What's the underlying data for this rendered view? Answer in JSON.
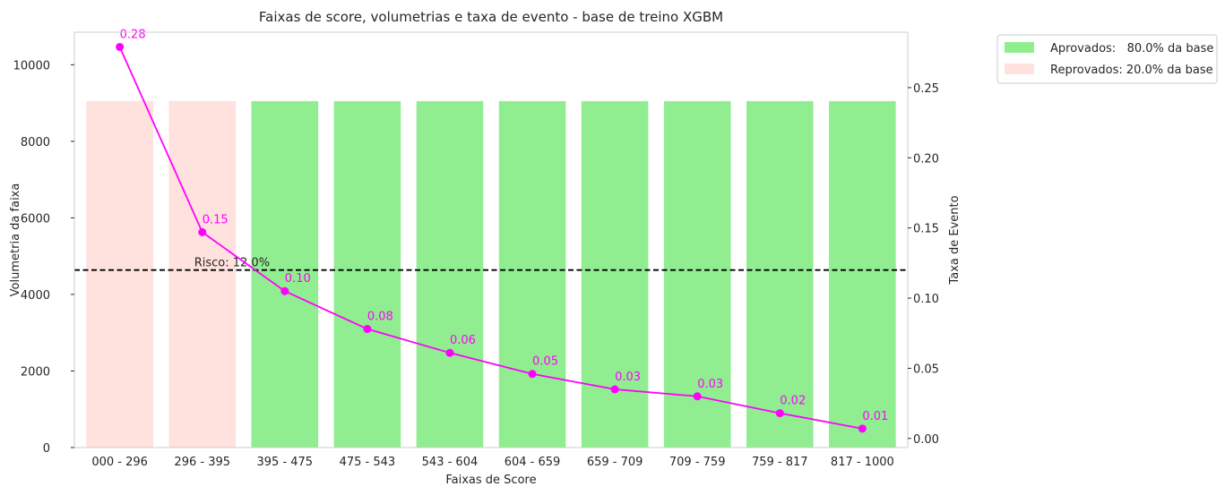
{
  "chart_data": {
    "type": "bar",
    "title": "Faixas de score, volumetrias e taxa de evento - base de treino XGBM",
    "xlabel": "Faixas de Score",
    "ylabel": "Volumetria da faixa",
    "y2label": "Taxa de Evento",
    "categories": [
      "000 - 296",
      "296 - 395",
      "395 - 475",
      "475 - 543",
      "543 - 604",
      "604 - 659",
      "659 - 709",
      "709 - 759",
      "759 - 817",
      "817 - 1000"
    ],
    "bars": {
      "values": [
        9050,
        9050,
        9050,
        9050,
        9050,
        9050,
        9050,
        9050,
        9050,
        9050
      ],
      "groups": [
        "Reprovados",
        "Reprovados",
        "Aprovados",
        "Aprovados",
        "Aprovados",
        "Aprovados",
        "Aprovados",
        "Aprovados",
        "Aprovados",
        "Aprovados"
      ]
    },
    "line": {
      "values": [
        0.279,
        0.147,
        0.105,
        0.078,
        0.061,
        0.046,
        0.035,
        0.03,
        0.018,
        0.007
      ],
      "labels": [
        "0.28",
        "0.15",
        "0.10",
        "0.08",
        "0.06",
        "0.05",
        "0.03",
        "0.03",
        "0.02",
        "0.01"
      ],
      "color": "#ff00ff"
    },
    "risk_line": {
      "value": 0.12,
      "label": "Risco: 12.0%"
    },
    "ylim": [
      0,
      10850
    ],
    "y2lim": [
      -0.0065,
      0.2895
    ],
    "yticks": [
      0,
      2000,
      4000,
      6000,
      8000,
      10000
    ],
    "y2ticks": [
      "0.00",
      "0.05",
      "0.10",
      "0.15",
      "0.20",
      "0.25"
    ],
    "legend": {
      "placement": "outside-top-right",
      "entries": [
        {
          "label": "Aprovados:   80.0% da base",
          "color": "#90ee90"
        },
        {
          "label": "Reprovados: 20.0% da base",
          "color": "#ffe1de"
        }
      ]
    },
    "colors": {
      "Aprovados": "#90ee90",
      "Reprovados": "#ffe1de"
    },
    "grid": false
  }
}
